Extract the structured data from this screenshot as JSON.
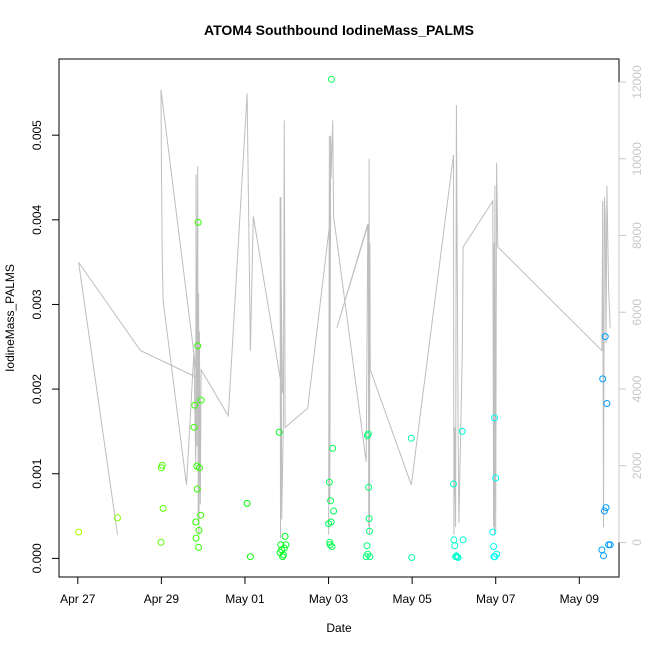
{
  "chart_data": {
    "type": "scatter",
    "title": "ATOM4 Southbound IodineMass_PALMS",
    "xlabel": "Date",
    "ylabel": "IodineMass_PALMS",
    "x_ticks": [
      "Apr 27",
      "Apr 29",
      "May 01",
      "May 03",
      "May 05",
      "May 07",
      "May 09"
    ],
    "x_tick_days": [
      0,
      2,
      4,
      6,
      8,
      10,
      12
    ],
    "xlim_days": [
      -0.45,
      12.95
    ],
    "y_ticks": [
      "0.000",
      "0.001",
      "0.002",
      "0.003",
      "0.004",
      "0.005"
    ],
    "y_tick_values": [
      0,
      0.001,
      0.002,
      0.003,
      0.004,
      0.005
    ],
    "ylim": [
      -0.00022,
      0.0059
    ],
    "y2_ticks": [
      "0",
      "2000",
      "4000",
      "6000",
      "8000",
      "10000",
      "12000"
    ],
    "y2_tick_values": [
      0,
      2000,
      4000,
      6000,
      8000,
      10000,
      12000
    ],
    "y2lim": [
      -900,
      12600
    ],
    "grid": false,
    "points_day_value": [
      [
        0.02,
        0.00031
      ],
      [
        0.95,
        0.00048
      ],
      [
        1.99,
        0.00019
      ],
      [
        2.0,
        0.00107
      ],
      [
        2.02,
        0.0011
      ],
      [
        2.04,
        0.00059
      ],
      [
        2.78,
        0.00155
      ],
      [
        2.8,
        0.00181
      ],
      [
        2.82,
        0.00043
      ],
      [
        2.83,
        0.00024
      ],
      [
        2.85,
        0.00109
      ],
      [
        2.86,
        0.00082
      ],
      [
        2.87,
        0.00251
      ],
      [
        2.88,
        0.00397
      ],
      [
        2.89,
        0.00013
      ],
      [
        2.9,
        0.00033
      ],
      [
        2.91,
        0.00107
      ],
      [
        2.94,
        0.00051
      ],
      [
        2.95,
        0.00187
      ],
      [
        4.05,
        0.00065
      ],
      [
        4.13,
        2e-05
      ],
      [
        4.82,
        0.00149
      ],
      [
        4.84,
        7e-05
      ],
      [
        4.86,
        0.00016
      ],
      [
        4.88,
        0.0001
      ],
      [
        4.9,
        2e-05
      ],
      [
        4.92,
        4e-05
      ],
      [
        4.94,
        0.00012
      ],
      [
        4.96,
        0.00026
      ],
      [
        4.98,
        0.00016
      ],
      [
        6.0,
        0.00041
      ],
      [
        6.02,
        0.0009
      ],
      [
        6.03,
        0.00019
      ],
      [
        6.04,
        0.00016
      ],
      [
        6.05,
        0.00068
      ],
      [
        6.06,
        0.00043
      ],
      [
        6.07,
        0.00566
      ],
      [
        6.08,
        0.00014
      ],
      [
        6.1,
        0.0013
      ],
      [
        6.12,
        0.00056
      ],
      [
        6.9,
        2e-05
      ],
      [
        6.92,
        0.00015
      ],
      [
        6.93,
        0.00145
      ],
      [
        6.94,
        5e-05
      ],
      [
        6.95,
        0.00147
      ],
      [
        6.96,
        0.00084
      ],
      [
        6.97,
        0.00047
      ],
      [
        6.98,
        0.00032
      ],
      [
        6.99,
        2e-05
      ],
      [
        7.98,
        0.00142
      ],
      [
        7.99,
        1e-05
      ],
      [
        8.99,
        0.00088
      ],
      [
        9.0,
        0.00022
      ],
      [
        9.02,
        0.00015
      ],
      [
        9.04,
        2e-05
      ],
      [
        9.06,
        3e-05
      ],
      [
        9.08,
        2e-05
      ],
      [
        9.1,
        1e-05
      ],
      [
        9.2,
        0.0015
      ],
      [
        9.22,
        0.00022
      ],
      [
        9.93,
        0.00031
      ],
      [
        9.95,
        0.00014
      ],
      [
        9.96,
        2e-05
      ],
      [
        9.97,
        0.00166
      ],
      [
        9.98,
        2e-05
      ],
      [
        10.0,
        0.00095
      ],
      [
        10.02,
        5e-05
      ],
      [
        12.54,
        0.0001
      ],
      [
        12.56,
        0.00212
      ],
      [
        12.58,
        3e-05
      ],
      [
        12.6,
        0.00056
      ],
      [
        12.62,
        0.00262
      ],
      [
        12.64,
        0.0006
      ],
      [
        12.66,
        0.00183
      ],
      [
        12.7,
        0.00016
      ],
      [
        12.74,
        0.00016
      ]
    ],
    "line_series_right_axis": {
      "color": "#bebebe",
      "points_day_value": [
        [
          0.02,
          7300
        ],
        [
          0.95,
          200
        ],
        [
          0.02,
          7300
        ],
        [
          1.5,
          5000
        ],
        [
          2.85,
          4300
        ],
        [
          1.99,
          11800
        ],
        [
          2.0,
          10000
        ],
        [
          2.02,
          7500
        ],
        [
          2.04,
          6300
        ],
        [
          2.6,
          1500
        ],
        [
          2.78,
          5000
        ],
        [
          2.82,
          2000
        ],
        [
          2.83,
          9600
        ],
        [
          2.85,
          2500
        ],
        [
          2.87,
          9800
        ],
        [
          2.88,
          600
        ],
        [
          2.89,
          6500
        ],
        [
          2.9,
          200
        ],
        [
          2.91,
          5500
        ],
        [
          2.93,
          1000
        ],
        [
          2.95,
          4500
        ],
        [
          3.6,
          3300
        ],
        [
          4.05,
          11700
        ],
        [
          4.13,
          5000
        ],
        [
          4.2,
          8500
        ],
        [
          4.9,
          3900
        ],
        [
          4.84,
          9000
        ],
        [
          4.85,
          100
        ],
        [
          4.86,
          9000
        ],
        [
          4.88,
          600
        ],
        [
          4.92,
          3200
        ],
        [
          4.94,
          11000
        ],
        [
          4.96,
          3000
        ],
        [
          5.5,
          3500
        ],
        [
          6.05,
          8500
        ],
        [
          6.0,
          200
        ],
        [
          6.02,
          10600
        ],
        [
          6.03,
          1000
        ],
        [
          6.05,
          10600
        ],
        [
          6.06,
          9500
        ],
        [
          6.1,
          11000
        ],
        [
          6.12,
          8500
        ],
        [
          6.9,
          2100
        ],
        [
          6.94,
          8300
        ],
        [
          6.2,
          5600
        ],
        [
          6.95,
          8300
        ],
        [
          6.96,
          400
        ],
        [
          6.97,
          10000
        ],
        [
          6.98,
          200
        ],
        [
          6.99,
          7800
        ],
        [
          7.0,
          4500
        ],
        [
          7.98,
          1500
        ],
        [
          8.99,
          10100
        ],
        [
          9.0,
          200
        ],
        [
          9.02,
          3000
        ],
        [
          9.04,
          400
        ],
        [
          9.06,
          11400
        ],
        [
          9.1,
          3000
        ],
        [
          9.12,
          500
        ],
        [
          9.2,
          5000
        ],
        [
          9.22,
          7700
        ],
        [
          9.93,
          8900
        ],
        [
          9.95,
          400
        ],
        [
          9.96,
          7800
        ],
        [
          9.97,
          200
        ],
        [
          9.98,
          9300
        ],
        [
          10.0,
          300
        ],
        [
          10.02,
          9900
        ],
        [
          10.05,
          7700
        ],
        [
          12.54,
          5000
        ],
        [
          12.56,
          8900
        ],
        [
          12.58,
          400
        ],
        [
          12.6,
          9000
        ],
        [
          12.62,
          8500
        ],
        [
          12.64,
          5200
        ],
        [
          12.66,
          9300
        ],
        [
          12.7,
          6600
        ],
        [
          12.74,
          5600
        ]
      ]
    }
  }
}
